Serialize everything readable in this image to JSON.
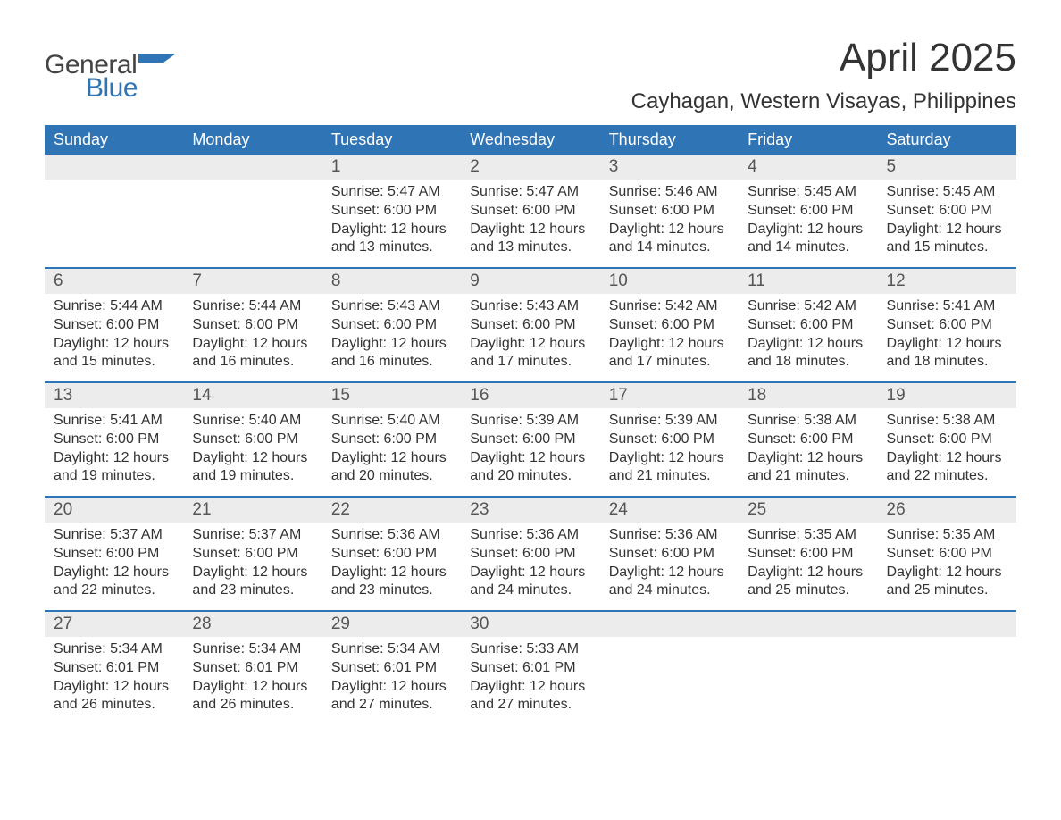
{
  "brand": {
    "word1": "General",
    "word2": "Blue",
    "color_general": "#444444",
    "color_blue": "#2f74b5",
    "flag_color": "#2f74b5"
  },
  "header": {
    "title": "April 2025",
    "subtitle": "Cayhagan, Western Visayas, Philippines"
  },
  "style": {
    "header_bg": "#2f74b5",
    "header_text": "#ffffff",
    "daynum_bg": "#ececec",
    "week_border": "#2f74b5",
    "text_color": "#333333",
    "title_fontsize": 44,
    "subtitle_fontsize": 24,
    "dayheader_fontsize": 18,
    "daynum_fontsize": 19,
    "details_fontsize": 16
  },
  "day_headers": [
    "Sunday",
    "Monday",
    "Tuesday",
    "Wednesday",
    "Thursday",
    "Friday",
    "Saturday"
  ],
  "weeks": [
    {
      "days": [
        {
          "num": "",
          "sunrise": "",
          "sunset": "",
          "daylight": ""
        },
        {
          "num": "",
          "sunrise": "",
          "sunset": "",
          "daylight": ""
        },
        {
          "num": "1",
          "sunrise": "Sunrise: 5:47 AM",
          "sunset": "Sunset: 6:00 PM",
          "daylight": "Daylight: 12 hours and 13 minutes."
        },
        {
          "num": "2",
          "sunrise": "Sunrise: 5:47 AM",
          "sunset": "Sunset: 6:00 PM",
          "daylight": "Daylight: 12 hours and 13 minutes."
        },
        {
          "num": "3",
          "sunrise": "Sunrise: 5:46 AM",
          "sunset": "Sunset: 6:00 PM",
          "daylight": "Daylight: 12 hours and 14 minutes."
        },
        {
          "num": "4",
          "sunrise": "Sunrise: 5:45 AM",
          "sunset": "Sunset: 6:00 PM",
          "daylight": "Daylight: 12 hours and 14 minutes."
        },
        {
          "num": "5",
          "sunrise": "Sunrise: 5:45 AM",
          "sunset": "Sunset: 6:00 PM",
          "daylight": "Daylight: 12 hours and 15 minutes."
        }
      ]
    },
    {
      "days": [
        {
          "num": "6",
          "sunrise": "Sunrise: 5:44 AM",
          "sunset": "Sunset: 6:00 PM",
          "daylight": "Daylight: 12 hours and 15 minutes."
        },
        {
          "num": "7",
          "sunrise": "Sunrise: 5:44 AM",
          "sunset": "Sunset: 6:00 PM",
          "daylight": "Daylight: 12 hours and 16 minutes."
        },
        {
          "num": "8",
          "sunrise": "Sunrise: 5:43 AM",
          "sunset": "Sunset: 6:00 PM",
          "daylight": "Daylight: 12 hours and 16 minutes."
        },
        {
          "num": "9",
          "sunrise": "Sunrise: 5:43 AM",
          "sunset": "Sunset: 6:00 PM",
          "daylight": "Daylight: 12 hours and 17 minutes."
        },
        {
          "num": "10",
          "sunrise": "Sunrise: 5:42 AM",
          "sunset": "Sunset: 6:00 PM",
          "daylight": "Daylight: 12 hours and 17 minutes."
        },
        {
          "num": "11",
          "sunrise": "Sunrise: 5:42 AM",
          "sunset": "Sunset: 6:00 PM",
          "daylight": "Daylight: 12 hours and 18 minutes."
        },
        {
          "num": "12",
          "sunrise": "Sunrise: 5:41 AM",
          "sunset": "Sunset: 6:00 PM",
          "daylight": "Daylight: 12 hours and 18 minutes."
        }
      ]
    },
    {
      "days": [
        {
          "num": "13",
          "sunrise": "Sunrise: 5:41 AM",
          "sunset": "Sunset: 6:00 PM",
          "daylight": "Daylight: 12 hours and 19 minutes."
        },
        {
          "num": "14",
          "sunrise": "Sunrise: 5:40 AM",
          "sunset": "Sunset: 6:00 PM",
          "daylight": "Daylight: 12 hours and 19 minutes."
        },
        {
          "num": "15",
          "sunrise": "Sunrise: 5:40 AM",
          "sunset": "Sunset: 6:00 PM",
          "daylight": "Daylight: 12 hours and 20 minutes."
        },
        {
          "num": "16",
          "sunrise": "Sunrise: 5:39 AM",
          "sunset": "Sunset: 6:00 PM",
          "daylight": "Daylight: 12 hours and 20 minutes."
        },
        {
          "num": "17",
          "sunrise": "Sunrise: 5:39 AM",
          "sunset": "Sunset: 6:00 PM",
          "daylight": "Daylight: 12 hours and 21 minutes."
        },
        {
          "num": "18",
          "sunrise": "Sunrise: 5:38 AM",
          "sunset": "Sunset: 6:00 PM",
          "daylight": "Daylight: 12 hours and 21 minutes."
        },
        {
          "num": "19",
          "sunrise": "Sunrise: 5:38 AM",
          "sunset": "Sunset: 6:00 PM",
          "daylight": "Daylight: 12 hours and 22 minutes."
        }
      ]
    },
    {
      "days": [
        {
          "num": "20",
          "sunrise": "Sunrise: 5:37 AM",
          "sunset": "Sunset: 6:00 PM",
          "daylight": "Daylight: 12 hours and 22 minutes."
        },
        {
          "num": "21",
          "sunrise": "Sunrise: 5:37 AM",
          "sunset": "Sunset: 6:00 PM",
          "daylight": "Daylight: 12 hours and 23 minutes."
        },
        {
          "num": "22",
          "sunrise": "Sunrise: 5:36 AM",
          "sunset": "Sunset: 6:00 PM",
          "daylight": "Daylight: 12 hours and 23 minutes."
        },
        {
          "num": "23",
          "sunrise": "Sunrise: 5:36 AM",
          "sunset": "Sunset: 6:00 PM",
          "daylight": "Daylight: 12 hours and 24 minutes."
        },
        {
          "num": "24",
          "sunrise": "Sunrise: 5:36 AM",
          "sunset": "Sunset: 6:00 PM",
          "daylight": "Daylight: 12 hours and 24 minutes."
        },
        {
          "num": "25",
          "sunrise": "Sunrise: 5:35 AM",
          "sunset": "Sunset: 6:00 PM",
          "daylight": "Daylight: 12 hours and 25 minutes."
        },
        {
          "num": "26",
          "sunrise": "Sunrise: 5:35 AM",
          "sunset": "Sunset: 6:00 PM",
          "daylight": "Daylight: 12 hours and 25 minutes."
        }
      ]
    },
    {
      "days": [
        {
          "num": "27",
          "sunrise": "Sunrise: 5:34 AM",
          "sunset": "Sunset: 6:01 PM",
          "daylight": "Daylight: 12 hours and 26 minutes."
        },
        {
          "num": "28",
          "sunrise": "Sunrise: 5:34 AM",
          "sunset": "Sunset: 6:01 PM",
          "daylight": "Daylight: 12 hours and 26 minutes."
        },
        {
          "num": "29",
          "sunrise": "Sunrise: 5:34 AM",
          "sunset": "Sunset: 6:01 PM",
          "daylight": "Daylight: 12 hours and 27 minutes."
        },
        {
          "num": "30",
          "sunrise": "Sunrise: 5:33 AM",
          "sunset": "Sunset: 6:01 PM",
          "daylight": "Daylight: 12 hours and 27 minutes."
        },
        {
          "num": "",
          "sunrise": "",
          "sunset": "",
          "daylight": ""
        },
        {
          "num": "",
          "sunrise": "",
          "sunset": "",
          "daylight": ""
        },
        {
          "num": "",
          "sunrise": "",
          "sunset": "",
          "daylight": ""
        }
      ]
    }
  ]
}
